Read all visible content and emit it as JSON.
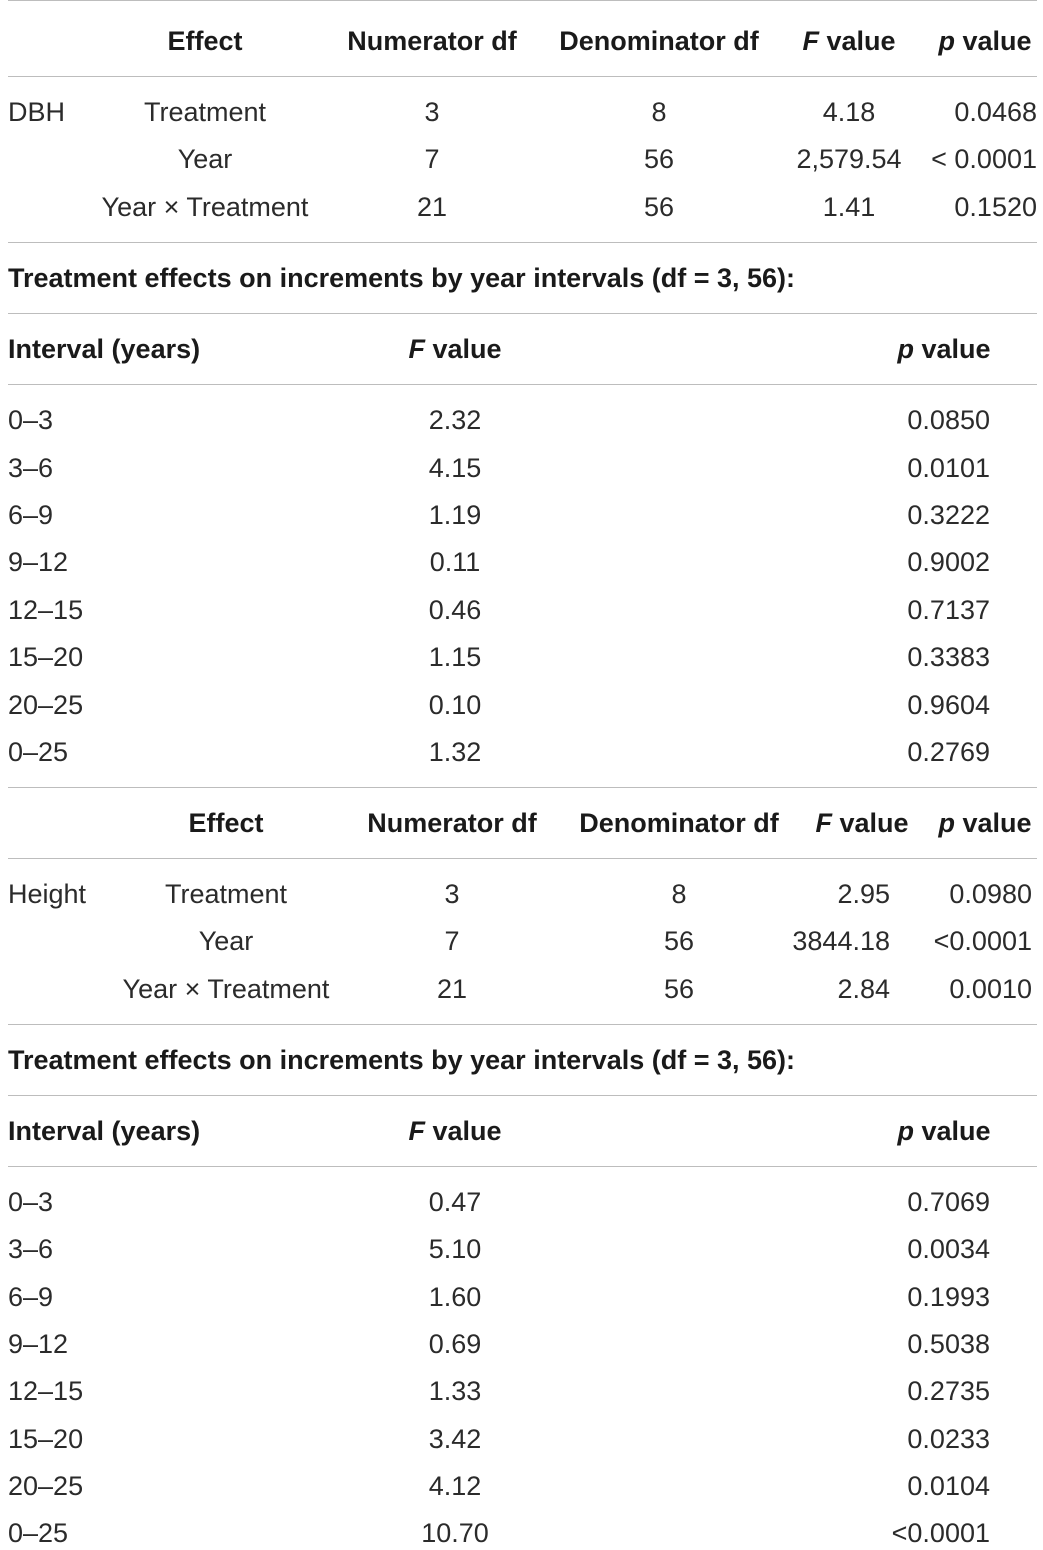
{
  "table1": {
    "headers": {
      "effect": "Effect",
      "num_df": "Numerator df",
      "den_df": "Denominator df",
      "f_letter": "F",
      "f_rest": " value",
      "p_letter": "p",
      "p_rest": " value"
    },
    "group": "DBH",
    "rows": [
      {
        "effect": "Treatment",
        "num_df": "3",
        "den_df": "8",
        "f": "4.18",
        "p": "0.0468"
      },
      {
        "effect": "Year",
        "num_df": "7",
        "den_df": "56",
        "f": "2,579.54",
        "p": "< 0.0001"
      },
      {
        "effect": "Year × Treatment",
        "num_df": "21",
        "den_df": "56",
        "f": "1.41",
        "p": "0.1520"
      }
    ]
  },
  "section1_title": "Treatment effects on increments by year intervals (df = 3, 56):",
  "table2": {
    "headers": {
      "interval": "Interval (years)",
      "f_letter": "F",
      "f_rest": " value",
      "p_letter": "p",
      "p_rest": " value"
    },
    "rows": [
      {
        "interval": "0–3",
        "f": "2.32",
        "p": "0.0850"
      },
      {
        "interval": "3–6",
        "f": "4.15",
        "p": "0.0101"
      },
      {
        "interval": "6–9",
        "f": "1.19",
        "p": "0.3222"
      },
      {
        "interval": "9–12",
        "f": "0.11",
        "p": "0.9002"
      },
      {
        "interval": "12–15",
        "f": "0.46",
        "p": "0.7137"
      },
      {
        "interval": "15–20",
        "f": "1.15",
        "p": "0.3383"
      },
      {
        "interval": "20–25",
        "f": "0.10",
        "p": "0.9604"
      },
      {
        "interval": "0–25",
        "f": "1.32",
        "p": "0.2769"
      }
    ]
  },
  "table3": {
    "headers": {
      "effect": "Effect",
      "num_df": "Numerator df",
      "den_df": "Denominator df",
      "f_letter": "F",
      "f_rest": " value",
      "p_letter": "p",
      "p_rest": " value"
    },
    "group": "Height",
    "rows": [
      {
        "effect": "Treatment",
        "num_df": "3",
        "den_df": "8",
        "f": "2.95",
        "p": "0.0980"
      },
      {
        "effect": "Year",
        "num_df": "7",
        "den_df": "56",
        "f": "3844.18",
        "p": "<0.0001"
      },
      {
        "effect": "Year × Treatment",
        "num_df": "21",
        "den_df": "56",
        "f": "2.84",
        "p": "0.0010"
      }
    ]
  },
  "section2_title": "Treatment effects on increments by year intervals (df = 3, 56):",
  "table4": {
    "headers": {
      "interval": "Interval (years)",
      "f_letter": "F",
      "f_rest": " value",
      "p_letter": "p",
      "p_rest": " value"
    },
    "rows": [
      {
        "interval": "0–3",
        "f": "0.47",
        "p": "0.7069"
      },
      {
        "interval": "3–6",
        "f": "5.10",
        "p": "0.0034"
      },
      {
        "interval": "6–9",
        "f": "1.60",
        "p": "0.1993"
      },
      {
        "interval": "9–12",
        "f": "0.69",
        "p": "0.5038"
      },
      {
        "interval": "12–15",
        "f": "1.33",
        "p": "0.2735"
      },
      {
        "interval": "15–20",
        "f": "3.42",
        "p": "0.0233"
      },
      {
        "interval": "20–25",
        "f": "4.12",
        "p": "0.0104"
      },
      {
        "interval": "0–25",
        "f": "10.70",
        "p": "<0.0001"
      }
    ]
  }
}
